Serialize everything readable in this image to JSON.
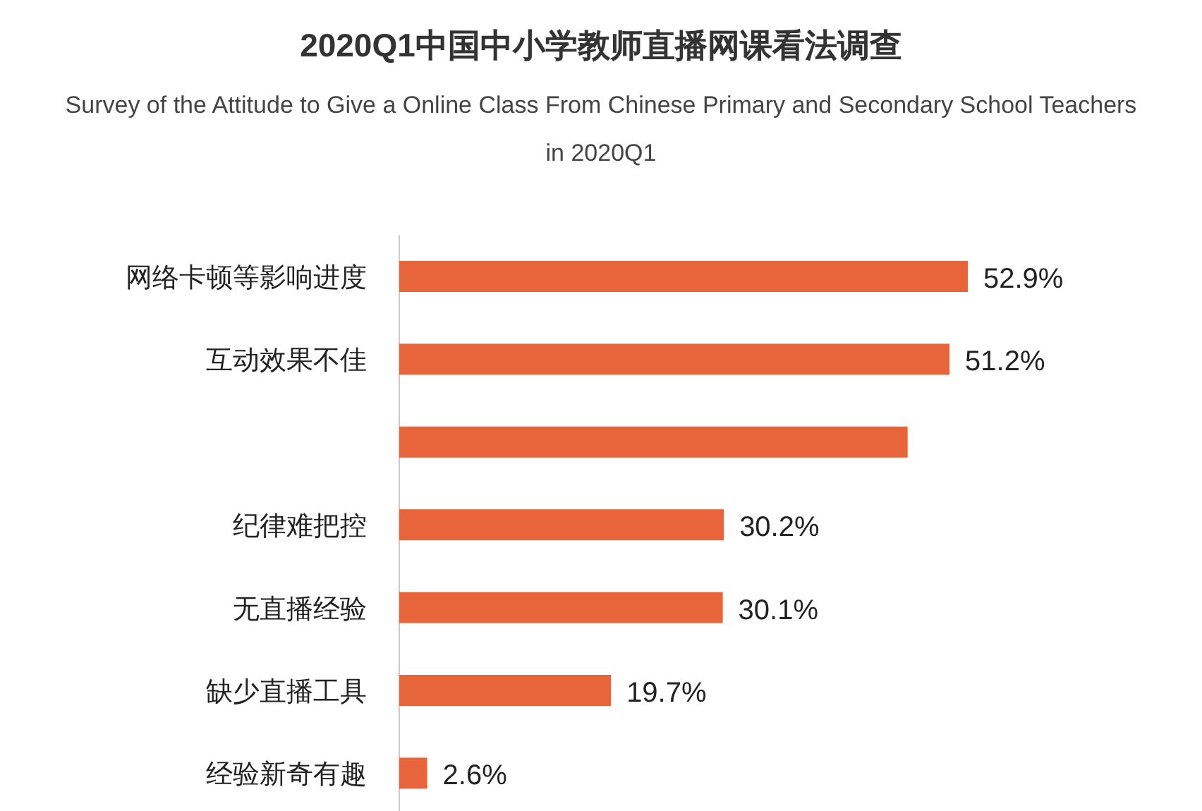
{
  "chart_data": {
    "type": "bar",
    "orientation": "horizontal",
    "title": "2020Q1中国中小学教师直播网课看法调查",
    "subtitle": "Survey of the Attitude to Give a Online Class From Chinese Primary and Secondary  School Teachers in 2020Q1",
    "categories": [
      "网络卡顿等影响进度",
      "互动效果不佳",
      null,
      "纪律难把控",
      "无直播经验",
      "缺少直播工具",
      "经验新奇有趣"
    ],
    "values": [
      52.9,
      51.2,
      47.3,
      30.2,
      30.1,
      19.7,
      2.6
    ],
    "value_labels": [
      "52.9%",
      "51.2%",
      null,
      "30.2%",
      "30.1%",
      "19.7%",
      "2.6%"
    ],
    "color": "#e8643a"
  }
}
